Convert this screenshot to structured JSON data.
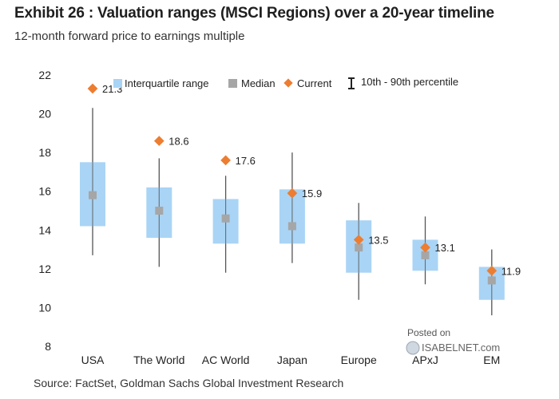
{
  "title": "Exhibit 26 : Valuation ranges (MSCI Regions) over a 20-year timeline",
  "subtitle": "12-month forward price to earnings multiple",
  "source": "Source: FactSet, Goldman Sachs Global Investment Research",
  "watermark": {
    "line1": "Posted on",
    "line2": "ISABELNET.com"
  },
  "legend": {
    "iqr": "Interquartile range",
    "median": "Median",
    "current": "Current",
    "range": "10th - 90th percentile"
  },
  "colors": {
    "iqr": "#a9d4f5",
    "median": "#a6a6a6",
    "current": "#ed7d31",
    "whisker": "#555555"
  },
  "chart_data": {
    "type": "box",
    "title": "Exhibit 26 : Valuation ranges (MSCI Regions) over a 20-year timeline",
    "ylabel": "12-month forward price to earnings multiple",
    "ylim": [
      8,
      22
    ],
    "yticks": [
      8,
      10,
      12,
      14,
      16,
      18,
      20,
      22
    ],
    "categories": [
      "USA",
      "The World",
      "AC World",
      "Japan",
      "Europe",
      "APxJ",
      "EM"
    ],
    "p10": [
      12.7,
      12.1,
      11.8,
      12.3,
      10.4,
      11.2,
      9.6
    ],
    "q1": [
      14.2,
      13.6,
      13.3,
      13.3,
      11.8,
      11.9,
      10.4
    ],
    "median": [
      15.8,
      15.0,
      14.6,
      14.2,
      13.1,
      12.7,
      11.4
    ],
    "q3": [
      17.5,
      16.2,
      15.6,
      16.1,
      14.5,
      13.5,
      12.1
    ],
    "p90": [
      20.3,
      17.7,
      16.8,
      18.0,
      15.4,
      14.7,
      13.0
    ],
    "current": [
      21.3,
      18.6,
      17.6,
      15.9,
      13.5,
      13.1,
      11.9
    ],
    "current_labels": [
      "21.3",
      "18.6",
      "17.6",
      "15.9",
      "13.5",
      "13.1",
      "11.9"
    ]
  }
}
